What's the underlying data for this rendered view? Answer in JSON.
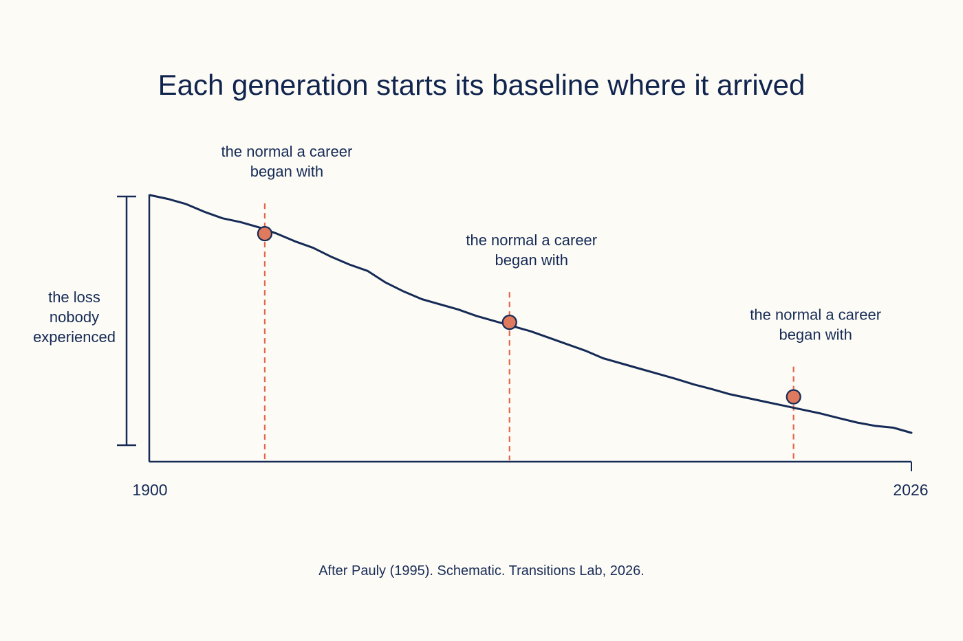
{
  "chart_data": {
    "type": "line",
    "title": "Each generation starts its baseline where it arrived",
    "caption": "After Pauly (1995). Schematic. Transitions Lab, 2026.",
    "xlabel": "",
    "ylabel": "",
    "x_range": [
      1900,
      2026
    ],
    "y_range": [
      0,
      100
    ],
    "x_tick_labels": [
      "1900",
      "2026"
    ],
    "grid": false,
    "line_color": "#152a55",
    "marker_color": "#e07a5f",
    "guide_color": "#e4664a",
    "series": [
      {
        "x": [
          1900,
          1903,
          1906,
          1909,
          1912,
          1915,
          1918,
          1921,
          1924,
          1927,
          1930,
          1933,
          1936,
          1939,
          1942,
          1945,
          1948,
          1951,
          1954,
          1957,
          1960,
          1963,
          1966,
          1969,
          1972,
          1975,
          1978,
          1981,
          1984,
          1987,
          1990,
          1993,
          1996,
          1999,
          2002,
          2005,
          2008,
          2011,
          2014,
          2017,
          2020,
          2023,
          2026
        ],
        "y": [
          100,
          98.5,
          96.5,
          93.5,
          91,
          89.5,
          87.5,
          85,
          82,
          79.5,
          76,
          73,
          70.5,
          66,
          62.5,
          59.5,
          57.5,
          55.5,
          53,
          51,
          49,
          47,
          44.5,
          42,
          39.5,
          36.5,
          34.5,
          32.5,
          30.5,
          28.5,
          26.3,
          24.5,
          22.5,
          21,
          19.5,
          18,
          16.5,
          15,
          13.2,
          11.5,
          10.2,
          9.5,
          7.5
        ]
      }
    ],
    "annotations": [
      {
        "x": 1919,
        "y": 85,
        "label": "the normal a career began with"
      },
      {
        "x": 1959.5,
        "y": 50.5,
        "label": "the normal a career began with"
      },
      {
        "x": 2006.5,
        "y": 21.5,
        "label": "the normal a career began with"
      }
    ],
    "bracket_label": "the loss nobody experienced"
  }
}
